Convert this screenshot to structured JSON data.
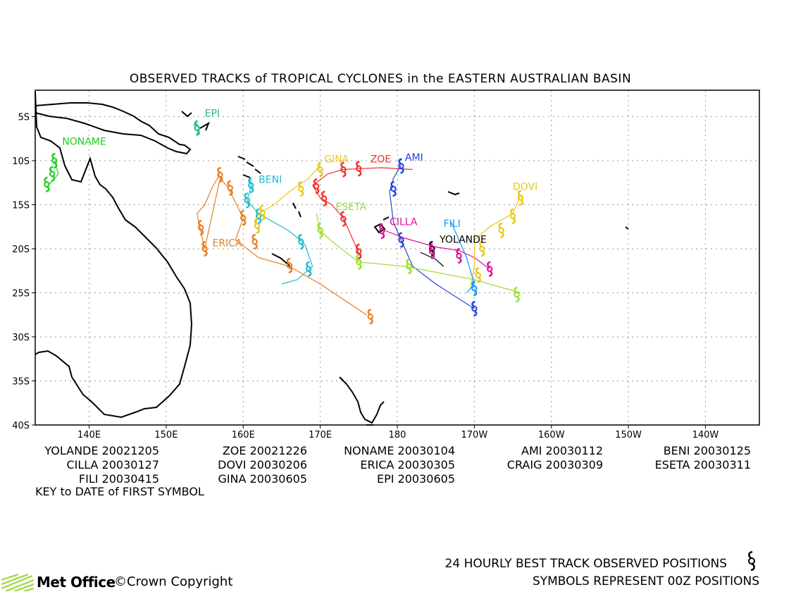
{
  "title": "OBSERVED TRACKS of TROPICAL CYCLONES in the EASTERN AUSTRALIAN BASIN",
  "axes": {
    "lon_ticks": [
      "140E",
      "150E",
      "160E",
      "170E",
      "180",
      "170W",
      "160W",
      "150W",
      "140W"
    ],
    "lat_ticks": [
      "5S",
      "10S",
      "15S",
      "20S",
      "25S",
      "30S",
      "35S",
      "40S"
    ]
  },
  "chart_data": {
    "type": "map-tracks",
    "title": "OBSERVED TRACKS of TROPICAL CYCLONES in the EASTERN AUSTRALIAN BASIN",
    "lon_range_east": [
      133,
      227
    ],
    "lat_range_south": [
      2,
      40
    ],
    "storms": [
      {
        "name": "YOLANDE",
        "color": "#000000",
        "track": [
          [
            183,
            20.4
          ],
          [
            185,
            21.2
          ],
          [
            186,
            22.0
          ]
        ],
        "daily": [
          [
            184.5,
            20.0
          ]
        ]
      },
      {
        "name": "ZOE",
        "color": "#ee3030",
        "track": [
          [
            182,
            11.0
          ],
          [
            178,
            10.8
          ],
          [
            175,
            10.9
          ],
          [
            173,
            11.0
          ],
          [
            171,
            11.5
          ],
          [
            169,
            12.8
          ],
          [
            170,
            14.2
          ],
          [
            171.5,
            15.0
          ],
          [
            173,
            16.5
          ],
          [
            174,
            18.5
          ],
          [
            175,
            20.5
          ]
        ],
        "daily": [
          [
            175,
            10.9
          ],
          [
            173,
            11.0
          ],
          [
            169.5,
            12.9
          ],
          [
            170.5,
            14.3
          ],
          [
            173,
            16.6
          ],
          [
            175,
            20.3
          ]
        ]
      },
      {
        "name": "NONAME",
        "color": "#22cc22",
        "track": [
          [
            135.5,
            10
          ],
          [
            136,
            11.5
          ],
          [
            135,
            12.5
          ],
          [
            134.5,
            13
          ]
        ],
        "daily": [
          [
            135.5,
            10.0
          ],
          [
            135.2,
            11.5
          ],
          [
            134.5,
            12.7
          ]
        ]
      },
      {
        "name": "AMI",
        "color": "#2244dd",
        "track": [
          [
            180.5,
            10.5
          ],
          [
            179.5,
            12
          ],
          [
            179,
            13.5
          ],
          [
            179.5,
            17
          ],
          [
            180.5,
            19
          ],
          [
            182,
            22
          ],
          [
            185,
            24
          ],
          [
            190,
            26.8
          ]
        ],
        "daily": [
          [
            180.5,
            10.6
          ],
          [
            179.5,
            13.2
          ],
          [
            180.5,
            19.0
          ],
          [
            190,
            26.8
          ]
        ]
      },
      {
        "name": "BENI",
        "color": "#22bbcc",
        "track": [
          [
            161,
            12
          ],
          [
            161,
            13
          ],
          [
            160.5,
            14.5
          ],
          [
            162,
            16
          ],
          [
            166,
            18
          ],
          [
            168,
            19.5
          ],
          [
            169,
            22
          ],
          [
            167,
            23.5
          ],
          [
            165,
            24
          ]
        ],
        "daily": [
          [
            161,
            12.8
          ],
          [
            160.5,
            14.5
          ],
          [
            162,
            16.3
          ],
          [
            167.5,
            19.2
          ],
          [
            168.5,
            22.3
          ]
        ]
      },
      {
        "name": "CILLA",
        "color": "#dd1199",
        "track": [
          [
            178,
            17.8
          ],
          [
            181,
            18.8
          ],
          [
            185,
            19.8
          ],
          [
            188,
            20.2
          ],
          [
            190,
            21
          ],
          [
            192,
            22.3
          ]
        ],
        "daily": [
          [
            178,
            18.0
          ],
          [
            184.5,
            20.3
          ],
          [
            188,
            20.8
          ],
          [
            192,
            22.3
          ]
        ]
      },
      {
        "name": "DOVI",
        "color": "#e6c81e",
        "track": [
          [
            196,
            14
          ],
          [
            195,
            16
          ],
          [
            192,
            17.5
          ],
          [
            190,
            19
          ],
          [
            190,
            22
          ],
          [
            189.5,
            24.5
          ]
        ],
        "daily": [
          [
            196,
            14.2
          ],
          [
            195,
            16.3
          ],
          [
            193.5,
            17.9
          ],
          [
            191,
            20.0
          ],
          [
            190.5,
            23.0
          ]
        ]
      },
      {
        "name": "ERICA",
        "color": "#e67e22",
        "track": [
          [
            157,
            11.5
          ],
          [
            156,
            13
          ],
          [
            155,
            15
          ],
          [
            154,
            16
          ],
          [
            154.5,
            18
          ],
          [
            155,
            20
          ],
          [
            157,
            12
          ],
          [
            158,
            13
          ],
          [
            160,
            16.5
          ],
          [
            159,
            19
          ],
          [
            162,
            21
          ],
          [
            166,
            22
          ],
          [
            170,
            24
          ],
          [
            176,
            27.5
          ]
        ],
        "daily": [
          [
            157,
            11.6
          ],
          [
            158.3,
            13.1
          ],
          [
            160,
            16.5
          ],
          [
            161.5,
            19.2
          ],
          [
            154.5,
            17.6
          ],
          [
            155,
            20.0
          ],
          [
            166,
            21.9
          ],
          [
            176.5,
            27.7
          ]
        ]
      },
      {
        "name": "CRAIG",
        "color": "#aa0000",
        "track": [],
        "daily": []
      },
      {
        "name": "ESETA",
        "color": "#99dd33",
        "track": [
          [
            169.5,
            16
          ],
          [
            170,
            18
          ],
          [
            172,
            19.5
          ],
          [
            175,
            21.5
          ],
          [
            181,
            22
          ],
          [
            190,
            23.5
          ],
          [
            196,
            25
          ]
        ],
        "daily": [
          [
            170,
            17.9
          ],
          [
            175,
            21.5
          ],
          [
            181.5,
            22.0
          ],
          [
            195.5,
            25.2
          ]
        ]
      },
      {
        "name": "FILI",
        "color": "#1199ee",
        "track": [
          [
            187,
            17
          ],
          [
            189,
            21
          ],
          [
            190,
            24
          ],
          [
            189,
            25
          ]
        ],
        "daily": [
          [
            190,
            24.5
          ]
        ]
      },
      {
        "name": "GINA",
        "color": "#e6c81e",
        "track": [
          [
            170,
            10.5
          ],
          [
            168.5,
            12.0
          ],
          [
            166.0,
            13.5
          ],
          [
            164.0,
            15.0
          ],
          [
            162.0,
            16.0
          ],
          [
            161.5,
            17.5
          ]
        ],
        "daily": [
          [
            170,
            11.0
          ],
          [
            167.5,
            13.2
          ],
          [
            162.5,
            15.9
          ],
          [
            161.8,
            17.4
          ]
        ]
      },
      {
        "name": "EPI",
        "color": "#22bb99",
        "track": [
          [
            153.5,
            6.0
          ],
          [
            154.0,
            5.8
          ],
          [
            154.3,
            6.5
          ],
          [
            154.0,
            7.0
          ]
        ],
        "daily": [
          [
            154.0,
            6.3
          ]
        ]
      }
    ],
    "key": [
      {
        "name": "YOLANDE",
        "date": "20021205"
      },
      {
        "name": "ZOE",
        "date": "20021226"
      },
      {
        "name": "NONAME",
        "date": "20030104"
      },
      {
        "name": "AMI",
        "date": "20030112"
      },
      {
        "name": "BENI",
        "date": "20030125"
      },
      {
        "name": "CILLA",
        "date": "20030127"
      },
      {
        "name": "DOVI",
        "date": "20030206"
      },
      {
        "name": "ERICA",
        "date": "20030305"
      },
      {
        "name": "CRAIG",
        "date": "20030309"
      },
      {
        "name": "ESETA",
        "date": "20030311"
      },
      {
        "name": "FILI",
        "date": "20030415"
      },
      {
        "name": "GINA",
        "date": "20030605"
      },
      {
        "name": "EPI",
        "date": "20030605"
      }
    ]
  },
  "labels": {
    "YOLANDE": "YOLANDE",
    "ZOE": "ZOE",
    "NONAME": "NONAME",
    "AMI": "AMI",
    "BENI": "BENI",
    "CILLA": "CILLA",
    "DOVI": "DOVI",
    "ERICA": "ERICA",
    "ESETA": "ESETA",
    "FILI": "FILI",
    "GINA": "GINA",
    "EPI": "EPI"
  },
  "key_note": "KEY to DATE of FIRST SYMBOL",
  "footer": {
    "line1": "24 HOURLY BEST TRACK OBSERVED POSITIONS",
    "line2": "SYMBOLS REPRESENT 00Z POSITIONS",
    "logo": "Met Office",
    "copyright": "©Crown Copyright"
  }
}
